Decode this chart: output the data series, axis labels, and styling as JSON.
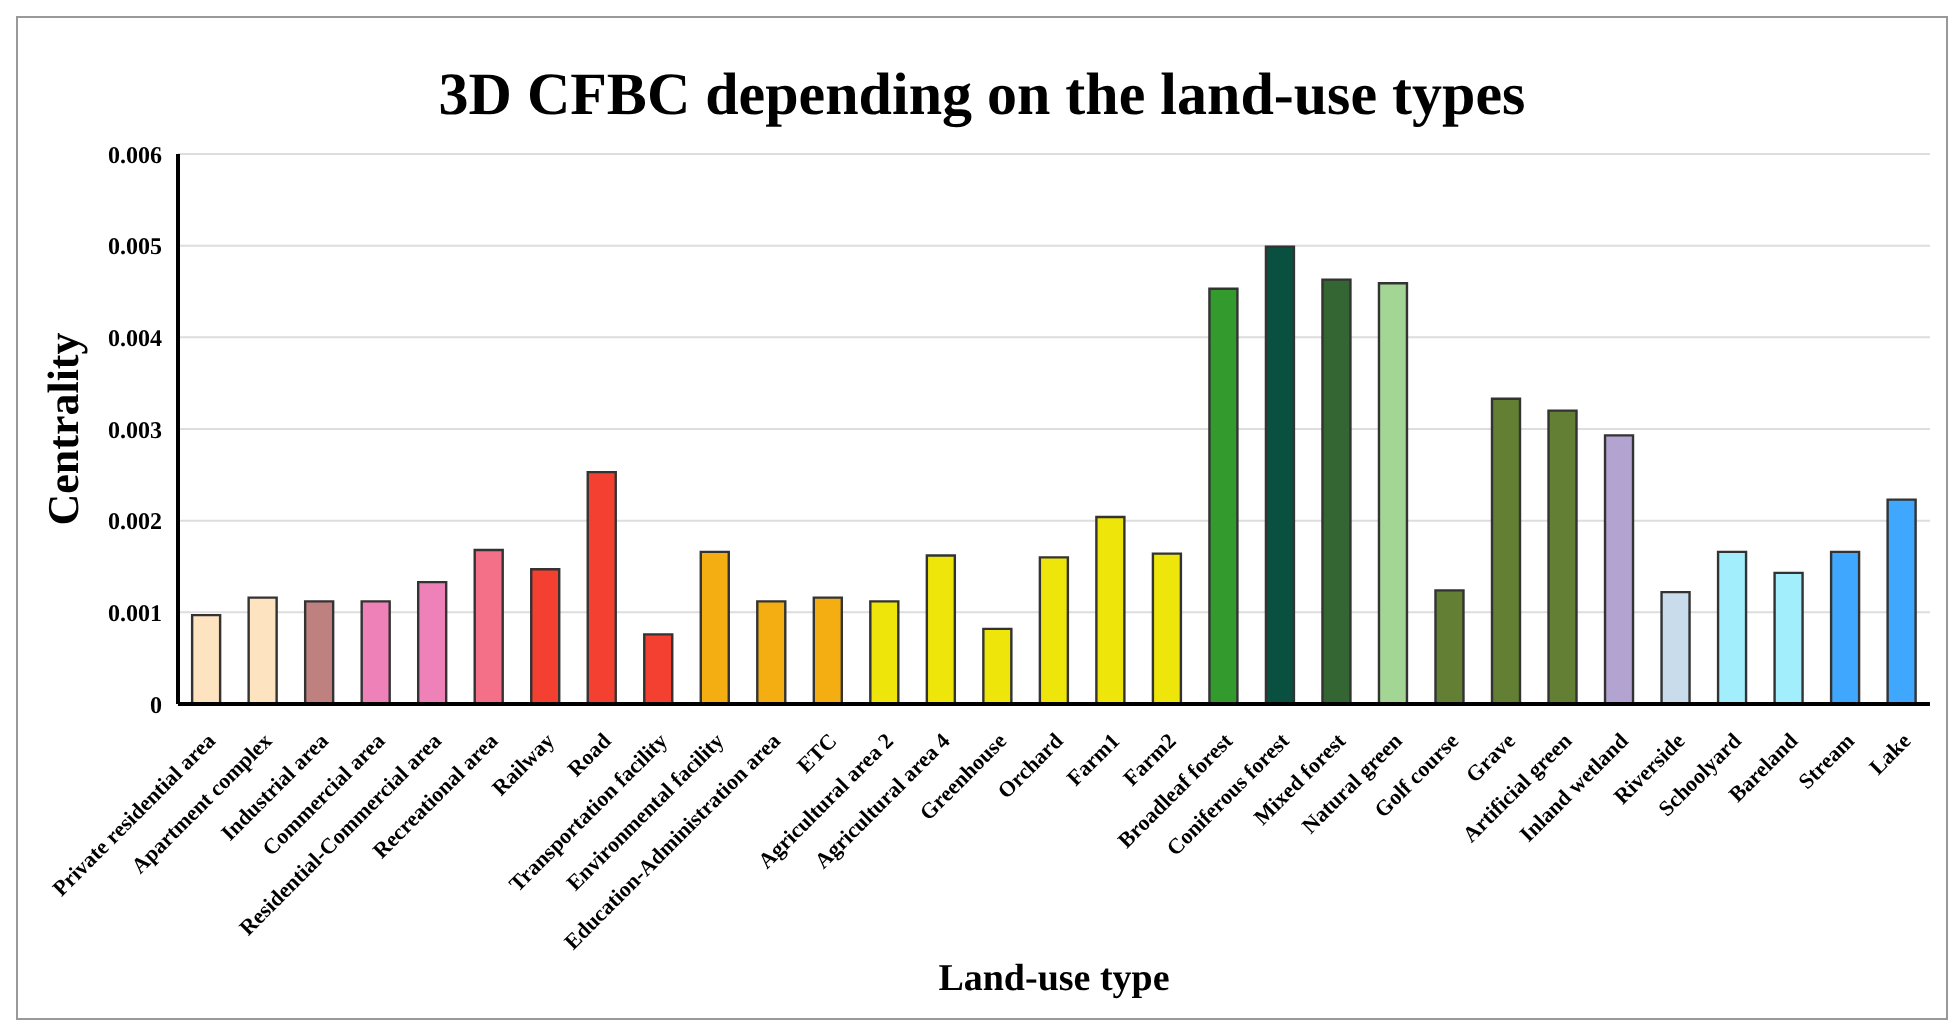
{
  "chart_data": {
    "type": "bar",
    "title": "3D CFBC depending on the land-use types",
    "xlabel": "Land-use type",
    "ylabel": "Centrality",
    "categories": [
      "Private residential area",
      "Apartment complex",
      "Industrial area",
      "Commercial area",
      "Residential-Commercial area",
      "Recreational area",
      "Railway",
      "Road",
      "Transportation facility",
      "Environmental facility",
      "Education-Administration area",
      "ETC",
      "Agricultural area 2",
      "Agricultural area 4",
      "Greenhouse",
      "Orchard",
      "Farm1",
      "Farm2",
      "Broadleaf forest",
      "Coniferous forest",
      "Mixed forest",
      "Natural green",
      "Golf course",
      "Grave",
      "Artificial green",
      "Inland wetland",
      "Riverside",
      "Schoolyard",
      "Bareland",
      "Stream",
      "Lake"
    ],
    "values": [
      0.00097,
      0.00116,
      0.00112,
      0.00112,
      0.00133,
      0.00168,
      0.00147,
      0.00253,
      0.00076,
      0.00166,
      0.00112,
      0.00116,
      0.00112,
      0.00162,
      0.00082,
      0.0016,
      0.00204,
      0.00164,
      0.00453,
      0.00499,
      0.00463,
      0.00459,
      0.00124,
      0.00333,
      0.0032,
      0.00293,
      0.00122,
      0.00166,
      0.00143,
      0.00166,
      0.00223
    ],
    "colors": [
      "#fde3c0",
      "#fde3c0",
      "#bf8080",
      "#ee82b8",
      "#ee82b8",
      "#f47088",
      "#f44030",
      "#f44030",
      "#f44030",
      "#f4ae12",
      "#f4ae12",
      "#f4ae12",
      "#eee60a",
      "#eee60a",
      "#eee60a",
      "#eee60a",
      "#eee60a",
      "#eee60a",
      "#339a2d",
      "#0a5040",
      "#336633",
      "#a3d694",
      "#627f33",
      "#627f33",
      "#627f33",
      "#b3a3d1",
      "#c8dceb",
      "#a3eefd",
      "#a3eefd",
      "#3fa7fd",
      "#3fa7fd"
    ],
    "ylim": [
      0,
      0.006
    ],
    "yticks": [
      0,
      0.001,
      0.002,
      0.003,
      0.004,
      0.005,
      0.006
    ],
    "grid": "y"
  }
}
